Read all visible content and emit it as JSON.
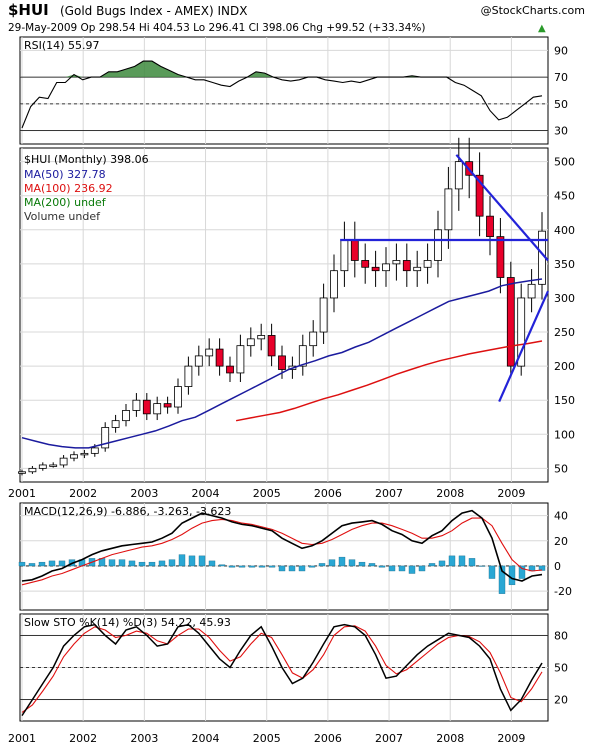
{
  "header": {
    "symbol": "$HUI",
    "name": "(Gold Bugs Index - AMEX) INDX",
    "watermark": "@StockCharts.com",
    "quote": "29-May-2009   Op 298.54   Hi 404.53   Lo 296.41   Cl 398.06   Chg +99.52 (+33.34%)",
    "quote_arrow": "▲"
  },
  "colors": {
    "bull": "#ffffff",
    "bear": "#e8002a",
    "ma50": "#1b1b9e",
    "ma100": "#dd1010",
    "trend": "#2323d8",
    "macd_hist": "#2aa7d4",
    "rsi_fill": "#3d8a3d",
    "grid": "#d8d8d8"
  },
  "chart_data": [
    {
      "type": "line",
      "title": "RSI(14) 55.97",
      "ylim": [
        20,
        100
      ],
      "ticks": [
        90,
        70,
        50,
        30,
        10
      ],
      "series": [
        {
          "name": "RSI(14)",
          "values": [
            32,
            48,
            55,
            54,
            66,
            66,
            72,
            68,
            70,
            70,
            74,
            74,
            76,
            78,
            82,
            82,
            78,
            75,
            72,
            70,
            68,
            68,
            66,
            64,
            63,
            67,
            70,
            74,
            73,
            70,
            68,
            67,
            68,
            70,
            70,
            68,
            67,
            66,
            67,
            66,
            68,
            70,
            70,
            70,
            70,
            71,
            70,
            70,
            70,
            70,
            66,
            64,
            60,
            56,
            45,
            38,
            40,
            45,
            50,
            55,
            56
          ]
        }
      ]
    },
    {
      "type": "candlestick",
      "title": "$HUI (Monthly) 398.06",
      "legend": [
        "MA(50) 327.78",
        "MA(100) 236.92",
        "MA(200) undef",
        "Volume undef"
      ],
      "ylim": [
        30,
        520
      ],
      "ticks": [
        500,
        450,
        400,
        350,
        300,
        250,
        200,
        150,
        100,
        50
      ],
      "x_ticks": [
        "2001",
        "2002",
        "2003",
        "2004",
        "2005",
        "2006",
        "2007",
        "2008",
        "2009"
      ],
      "annotations": [
        "horizontal line at 385 (2006-2009)",
        "falling trendline from 2008 high",
        "rising trendline from late-2008 low"
      ],
      "months": [
        "2001-01",
        "2001-03",
        "2001-05",
        "2001-07",
        "2001-09",
        "2001-11",
        "2002-01",
        "2002-03",
        "2002-05",
        "2002-07",
        "2002-09",
        "2002-11",
        "2003-01",
        "2003-03",
        "2003-05",
        "2003-07",
        "2003-09",
        "2003-11",
        "2004-01",
        "2004-03",
        "2004-05",
        "2004-07",
        "2004-09",
        "2004-11",
        "2005-01",
        "2005-03",
        "2005-05",
        "2005-07",
        "2005-09",
        "2005-11",
        "2006-01",
        "2006-03",
        "2006-05",
        "2006-07",
        "2006-09",
        "2006-11",
        "2007-01",
        "2007-03",
        "2007-05",
        "2007-07",
        "2007-09",
        "2007-11",
        "2008-01",
        "2008-03",
        "2008-05",
        "2008-07",
        "2008-09",
        "2008-11",
        "2009-01",
        "2009-03",
        "2009-05"
      ],
      "close": [
        45,
        50,
        55,
        55,
        65,
        70,
        72,
        80,
        110,
        120,
        135,
        150,
        130,
        145,
        140,
        170,
        200,
        215,
        225,
        200,
        190,
        230,
        240,
        245,
        215,
        195,
        200,
        230,
        250,
        300,
        340,
        385,
        355,
        345,
        340,
        350,
        355,
        340,
        345,
        355,
        400,
        460,
        500,
        480,
        420,
        390,
        330,
        200,
        300,
        320,
        398
      ],
      "ma50": {
        "start": "2001-01",
        "values": [
          95,
          90,
          85,
          82,
          80,
          80,
          85,
          90,
          95,
          100,
          105,
          112,
          120,
          125,
          135,
          145,
          155,
          165,
          175,
          185,
          195,
          202,
          208,
          215,
          220,
          228,
          235,
          245,
          255,
          265,
          275,
          285,
          295,
          300,
          305,
          310,
          318,
          322,
          325,
          327.78
        ]
      },
      "ma100": {
        "start": "2004-07",
        "values": [
          120,
          124,
          128,
          132,
          138,
          145,
          152,
          158,
          165,
          172,
          180,
          188,
          195,
          202,
          208,
          213,
          218,
          222,
          226,
          230,
          233,
          236.92
        ]
      }
    },
    {
      "type": "line",
      "title": "MACD(12,26,9) -6.886, -3.263, -3.623",
      "ylim": [
        -35,
        50
      ],
      "ticks": [
        40,
        20,
        0,
        -20
      ],
      "series": [
        {
          "name": "MACD(12,26,9)",
          "values": [
            -12,
            -11,
            -8,
            -4,
            -2,
            2,
            5,
            9,
            12,
            14,
            16,
            17,
            18,
            19,
            22,
            26,
            34,
            38,
            42,
            40,
            38,
            35,
            33,
            32,
            30,
            28,
            22,
            18,
            14,
            16,
            20,
            26,
            32,
            34,
            35,
            36,
            33,
            28,
            25,
            20,
            18,
            24,
            28,
            36,
            42,
            44,
            38,
            22,
            -4,
            -10,
            -12,
            -8,
            -6.886
          ]
        },
        {
          "name": "signal",
          "values": [
            -15,
            -13,
            -11,
            -8,
            -6,
            -3,
            0,
            3,
            6,
            9,
            11,
            13,
            15,
            16,
            18,
            21,
            25,
            30,
            34,
            36,
            37,
            36,
            34,
            33,
            31,
            29,
            26,
            22,
            18,
            17,
            18,
            21,
            25,
            29,
            32,
            34,
            34,
            32,
            29,
            26,
            22,
            22,
            24,
            28,
            34,
            38,
            38,
            32,
            18,
            5,
            -2,
            -4,
            -3.263
          ]
        },
        {
          "name": "histogram",
          "values": [
            3,
            2,
            3,
            4,
            4,
            5,
            5,
            6,
            6,
            5,
            5,
            4,
            3,
            3,
            4,
            5,
            9,
            8,
            8,
            4,
            1,
            -1,
            -1,
            -1,
            -1,
            -1,
            -4,
            -4,
            -4,
            -1,
            2,
            5,
            7,
            5,
            3,
            2,
            -1,
            -4,
            -4,
            -6,
            -4,
            2,
            4,
            8,
            8,
            6,
            0,
            -10,
            -22,
            -15,
            -10,
            -4,
            -3.623
          ]
        }
      ]
    },
    {
      "type": "line",
      "title": "Slow STO %K(14) %D(3) 54.22, 45.93",
      "ylim": [
        0,
        100
      ],
      "ticks": [
        80,
        50,
        20
      ],
      "x_ticks": [
        "2001",
        "2002",
        "2003",
        "2004",
        "2005",
        "2006",
        "2007",
        "2008",
        "2009"
      ],
      "series": [
        {
          "name": "%K(14)",
          "values": [
            5,
            20,
            35,
            50,
            70,
            80,
            88,
            90,
            80,
            72,
            85,
            88,
            80,
            70,
            72,
            88,
            90,
            82,
            70,
            58,
            50,
            66,
            80,
            88,
            70,
            50,
            35,
            40,
            55,
            72,
            88,
            90,
            88,
            80,
            62,
            40,
            42,
            52,
            62,
            70,
            76,
            82,
            80,
            78,
            70,
            58,
            30,
            10,
            20,
            38,
            54.22
          ]
        },
        {
          "name": "%D(3)",
          "values": [
            8,
            15,
            28,
            42,
            60,
            72,
            82,
            88,
            85,
            78,
            80,
            84,
            82,
            75,
            72,
            80,
            86,
            86,
            78,
            66,
            56,
            60,
            72,
            82,
            78,
            62,
            45,
            40,
            48,
            62,
            80,
            88,
            89,
            84,
            70,
            52,
            44,
            48,
            56,
            64,
            72,
            78,
            80,
            79,
            74,
            64,
            45,
            22,
            18,
            30,
            45.93
          ]
        }
      ]
    }
  ]
}
